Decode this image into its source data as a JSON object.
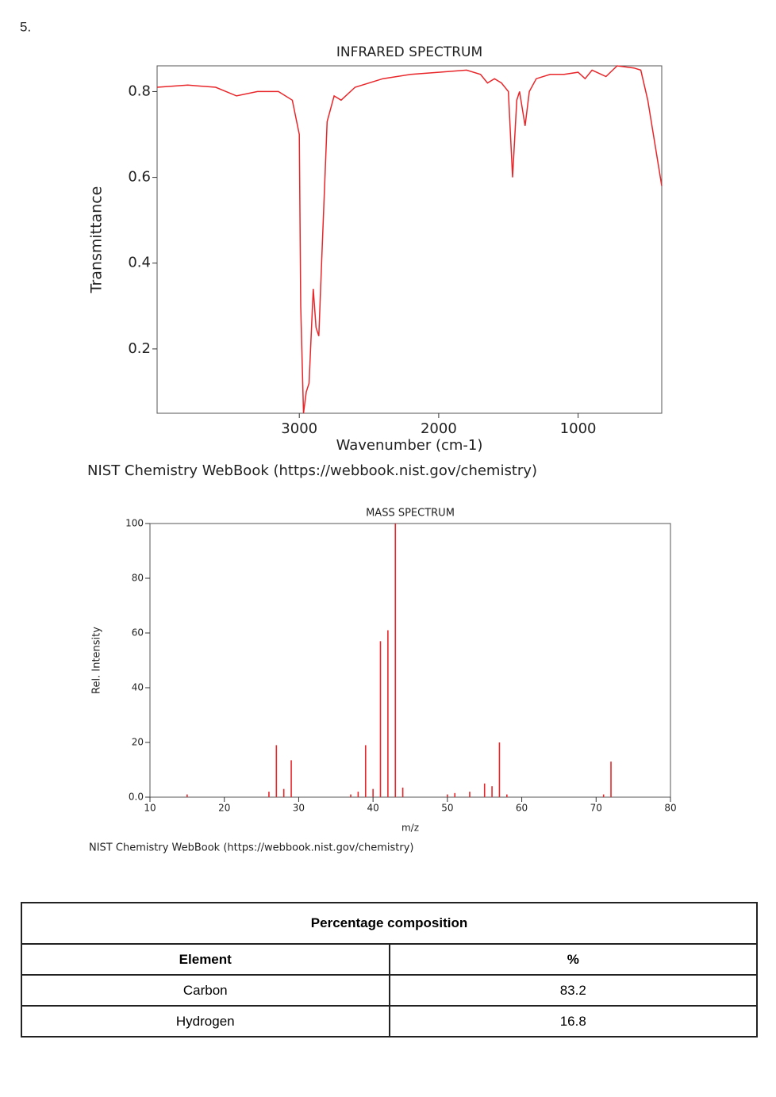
{
  "label": "5.",
  "chart_data": [
    {
      "type": "line",
      "title": "INFRARED SPECTRUM",
      "xlabel": "Wavenumber (cm-1)",
      "ylabel": "Transmittance",
      "caption": "NIST Chemistry WebBook (https://webbook.nist.gov/chemistry)",
      "color": "#e8262a",
      "x": [
        4020,
        3800,
        3600,
        3450,
        3300,
        3150,
        3050,
        3000,
        2990,
        2970,
        2950,
        2930,
        2900,
        2880,
        2860,
        2840,
        2800,
        2750,
        2700,
        2600,
        2400,
        2200,
        2000,
        1800,
        1700,
        1650,
        1600,
        1550,
        1500,
        1470,
        1440,
        1420,
        1400,
        1380,
        1350,
        1300,
        1200,
        1100,
        1000,
        950,
        900,
        800,
        720,
        600,
        550,
        500,
        450,
        400
      ],
      "values": [
        0.81,
        0.815,
        0.81,
        0.79,
        0.8,
        0.8,
        0.78,
        0.7,
        0.3,
        0.05,
        0.1,
        0.12,
        0.34,
        0.25,
        0.23,
        0.4,
        0.73,
        0.79,
        0.78,
        0.81,
        0.83,
        0.84,
        0.845,
        0.85,
        0.84,
        0.82,
        0.83,
        0.82,
        0.8,
        0.6,
        0.78,
        0.8,
        0.76,
        0.72,
        0.8,
        0.83,
        0.84,
        0.84,
        0.845,
        0.83,
        0.85,
        0.835,
        0.86,
        0.855,
        0.85,
        0.78,
        0.68,
        0.58
      ],
      "xlim": [
        4020,
        400
      ],
      "xticks": [
        3000,
        2000,
        1000
      ],
      "ylim": [
        0.05,
        0.86
      ],
      "yticks": [
        0.2,
        0.4,
        0.6,
        0.8
      ]
    },
    {
      "type": "bar",
      "title": "MASS SPECTRUM",
      "xlabel": "m/z",
      "ylabel": "Rel. Intensity",
      "caption": "NIST Chemistry WebBook (https://webbook.nist.gov/chemistry)",
      "color": "#e8262a",
      "x": [
        15,
        26,
        27,
        28,
        29,
        37,
        38,
        39,
        40,
        41,
        42,
        43,
        44,
        50,
        51,
        53,
        55,
        56,
        57,
        58,
        71,
        72
      ],
      "values": [
        1,
        2,
        19,
        3,
        13.5,
        1,
        2,
        19,
        3,
        57,
        61,
        100,
        3.5,
        1,
        1.5,
        2,
        5,
        4,
        20,
        1,
        1,
        13
      ],
      "xlim": [
        10,
        80
      ],
      "xticks": [
        10,
        20,
        30,
        40,
        50,
        60,
        70,
        80
      ],
      "ylim": [
        0,
        100
      ],
      "yticks": [
        {
          "value": 0,
          "label": "0.0"
        },
        20,
        40,
        60,
        80,
        100
      ]
    }
  ],
  "table": {
    "title": "Percentage composition",
    "header": [
      "Element",
      "%"
    ],
    "rows": [
      [
        "Carbon",
        "83.2"
      ],
      [
        "Hydrogen",
        "16.8"
      ]
    ]
  }
}
